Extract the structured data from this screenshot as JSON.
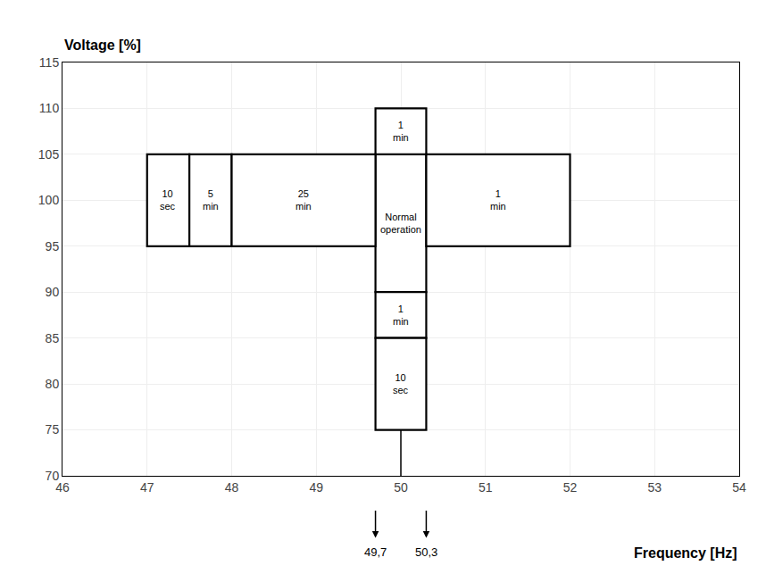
{
  "chart_data": {
    "type": "rectangles",
    "xlabel": "Frequency [Hz]",
    "ylabel": "Voltage [%]",
    "xlim": [
      46,
      54
    ],
    "ylim": [
      70,
      115
    ],
    "xticks": [
      46,
      47,
      48,
      49,
      50,
      51,
      52,
      53,
      54
    ],
    "yticks": [
      70,
      75,
      80,
      85,
      90,
      95,
      100,
      105,
      110,
      115
    ],
    "grid": true,
    "color": "#000000",
    "rectangles": [
      {
        "x": 49.7,
        "y": 90,
        "w": 0.6,
        "h": 15,
        "label": "Normal\noperation"
      },
      {
        "x": 49.7,
        "y": 105,
        "w": 0.6,
        "h": 5,
        "label": "1\nmin"
      },
      {
        "x": 47.0,
        "y": 95,
        "w": 0.5,
        "h": 10,
        "label": "10\nsec"
      },
      {
        "x": 47.5,
        "y": 95,
        "w": 0.5,
        "h": 10,
        "label": "5\nmin"
      },
      {
        "x": 48.0,
        "y": 95,
        "w": 1.7,
        "h": 10,
        "label": "25\nmin"
      },
      {
        "x": 50.3,
        "y": 95,
        "w": 1.7,
        "h": 10,
        "label": "1\nmin"
      },
      {
        "x": 49.7,
        "y": 85,
        "w": 0.6,
        "h": 5,
        "label": "1\nmin"
      },
      {
        "x": 49.7,
        "y": 75,
        "w": 0.6,
        "h": 10,
        "label": "10\nsec"
      }
    ],
    "line": {
      "x": [
        50.0,
        50.0
      ],
      "y": [
        70,
        75
      ]
    },
    "annotations": [
      {
        "x": 49.7,
        "text": "49,7"
      },
      {
        "x": 50.3,
        "text": "50,3"
      }
    ]
  }
}
